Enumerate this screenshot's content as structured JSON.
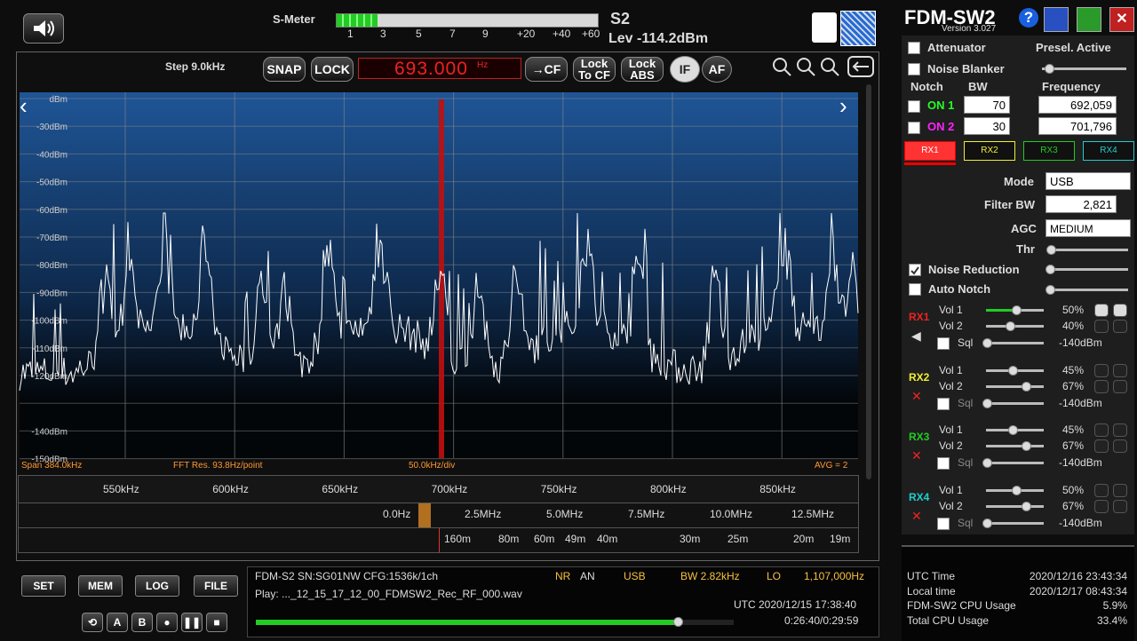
{
  "header": {
    "s_meter_label": "S-Meter",
    "s_meter_scale": [
      "1",
      "3",
      "5",
      "7",
      "9",
      "+20",
      "+40",
      "+60"
    ],
    "s_unit": "S2",
    "level": "Lev -114.2dBm"
  },
  "app": {
    "title": "FDM-SW2",
    "version": "Version 3.027",
    "help": "?"
  },
  "toolbar": {
    "step": "Step 9.0kHz",
    "snap": "SNAP",
    "lock": "LOCK",
    "frequency": "693.000",
    "frequency_unit": "Hz",
    "to_cf": "→CF",
    "lock_to_cf": [
      "Lock",
      "To CF"
    ],
    "lock_abs": [
      "Lock",
      "ABS"
    ],
    "if": "IF",
    "af": "AF"
  },
  "spectrum": {
    "y_labels": [
      "dBm",
      "-30dBm",
      "-40dBm",
      "-50dBm",
      "-60dBm",
      "-70dBm",
      "-80dBm",
      "-90dBm",
      "-100dBm",
      "-110dBm",
      "-120dBm",
      null,
      "-140dBm",
      "-150dBm"
    ],
    "span": "Span 384.0kHz",
    "fft": "FFT Res. 93.8Hz/point",
    "div": "50.0kHz/div",
    "avg": "AVG = 2"
  },
  "scales": {
    "khz": [
      "550kHz",
      "600kHz",
      "650kHz",
      "700kHz",
      "750kHz",
      "800kHz",
      "850kHz"
    ],
    "mhz": [
      "0.0Hz",
      "2.5MHz",
      "5.0MHz",
      "7.5MHz",
      "10.0MHz",
      "12.5MHz"
    ],
    "bands": [
      "160m",
      "80m",
      "60m",
      "49m",
      "40m",
      "30m",
      "25m",
      "20m",
      "19m"
    ]
  },
  "buttons": {
    "set": "SET",
    "mem": "MEM",
    "log": "LOG",
    "file": "FILE",
    "a": "A",
    "b": "B"
  },
  "status": {
    "device": "FDM-S2 SN:SG01NW  CFG:1536k/1ch",
    "nr": "NR",
    "an": "AN",
    "mode": "USB",
    "bw": "BW 2.82kHz",
    "lo": "LO",
    "lo_freq": "1,107,000Hz",
    "play": "Play: ..._12_15_17_12_00_FDMSW2_Rec_RF_000.wav",
    "utc": "UTC 2020/12/15 17:38:40",
    "time": "0:26:40/0:29:59"
  },
  "controls": {
    "attenuator": "Attenuator",
    "presel": "Presel. Active",
    "noise_blanker": "Noise Blanker",
    "notch": "Notch",
    "bw": "BW",
    "frequency": "Frequency",
    "notches": [
      {
        "label": "ON 1",
        "bw": "70",
        "freq": "692,059"
      },
      {
        "label": "ON 2",
        "bw": "30",
        "freq": "701,796"
      }
    ],
    "rx_tabs": [
      "RX1",
      "RX2",
      "RX3",
      "RX4"
    ],
    "mode_label": "Mode",
    "mode": "USB",
    "filter_bw_label": "Filter BW",
    "filter_bw": "2,821",
    "agc_label": "AGC",
    "agc": "MEDIUM",
    "thr": "Thr",
    "noise_reduction": "Noise Reduction",
    "auto_notch": "Auto Notch"
  },
  "receivers": [
    {
      "name": "RX1",
      "vol1": "Vol 1",
      "vol1_value": "50%",
      "vol2": "Vol 2",
      "vol2_value": "40%",
      "sql": "Sql",
      "sql_value": "-140dBm"
    },
    {
      "name": "RX2",
      "vol1": "Vol 1",
      "vol1_value": "45%",
      "vol2": "Vol 2",
      "vol2_value": "67%",
      "sql": "Sql",
      "sql_value": "-140dBm"
    },
    {
      "name": "RX3",
      "vol1": "Vol 1",
      "vol1_value": "45%",
      "vol2": "Vol 2",
      "vol2_value": "67%",
      "sql": "Sql",
      "sql_value": "-140dBm"
    },
    {
      "name": "RX4",
      "vol1": "Vol 1",
      "vol1_value": "50%",
      "vol2": "Vol 2",
      "vol2_value": "67%",
      "sql": "Sql",
      "sql_value": "-140dBm"
    }
  ],
  "footer": {
    "rows": [
      [
        "UTC Time",
        "2020/12/16 23:43:34"
      ],
      [
        "Local time",
        "2020/12/17 08:43:34"
      ],
      [
        "FDM-SW2 CPU Usage",
        "5.9%"
      ],
      [
        "Total CPU Usage",
        "33.4%"
      ]
    ]
  }
}
